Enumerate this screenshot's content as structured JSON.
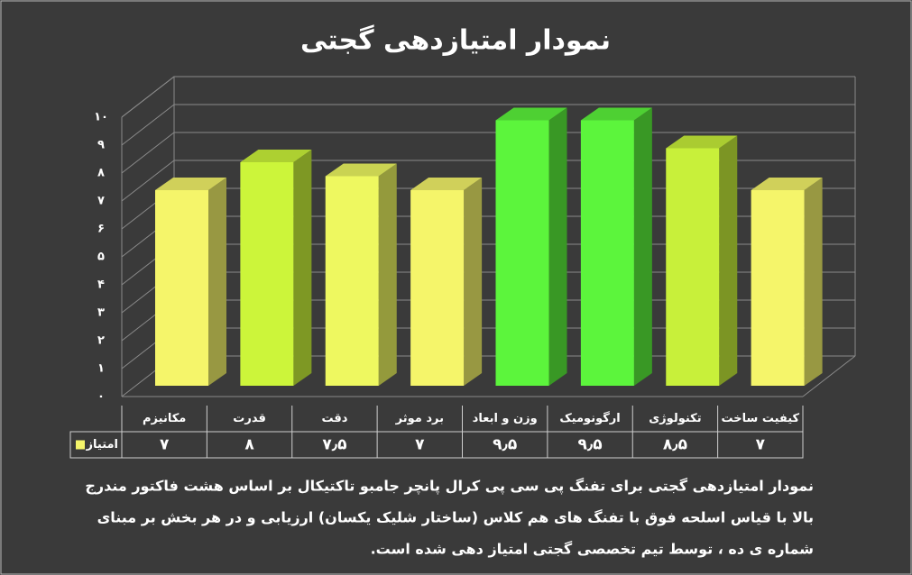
{
  "chart_data": {
    "type": "bar3d",
    "title": "نمودار امتیازدهی گجتی",
    "categories": [
      "مکانیزم",
      "قدرت",
      "دقت",
      "برد موثر",
      "وزن و ابعاد",
      "ارگونومیک",
      "تکنولوژی",
      "کیفیت ساخت"
    ],
    "series": [
      {
        "name": "امتیاز",
        "color": "#f5f56a",
        "colors": [
          "#f5f56a",
          "#ccf53a",
          "#eef860",
          "#f5f56a",
          "#5cf53c",
          "#5cf53c",
          "#c8f03a",
          "#f5f56a"
        ],
        "values": [
          7,
          8,
          7.5,
          7,
          9.5,
          9.5,
          8.5,
          7
        ],
        "value_labels": [
          "۷",
          "۸",
          "۷٫۵",
          "۷",
          "۹٫۵",
          "۹٫۵",
          "۸٫۵",
          "۷"
        ]
      }
    ],
    "ylim": [
      0,
      10
    ],
    "yticks": [
      {
        "value": 0,
        "label": "۰"
      },
      {
        "value": 1,
        "label": "۱"
      },
      {
        "value": 2,
        "label": "۲"
      },
      {
        "value": 3,
        "label": "۳"
      },
      {
        "value": 4,
        "label": "۴"
      },
      {
        "value": 5,
        "label": "۵"
      },
      {
        "value": 6,
        "label": "۶"
      },
      {
        "value": 7,
        "label": "۷"
      },
      {
        "value": 8,
        "label": "۸"
      },
      {
        "value": 9,
        "label": "۹"
      },
      {
        "value": 10,
        "label": "۱۰"
      }
    ],
    "grid": true,
    "caption": [
      "نمودار امتیازدهی گجتی برای تفنگ پی سی پی کرال پانچر جامبو تاکتیکال بر اساس هشت فاکتور مندرج",
      "بالا با قیاس اسلحه فوق با تفنگ های هم کلاس (ساختار شلیک یکسان) ارزیابی و در هر بخش بر مبنای",
      "شماره ی ده ، توسط تیم تخصصی گجتی امتیاز دهی شده است."
    ]
  }
}
